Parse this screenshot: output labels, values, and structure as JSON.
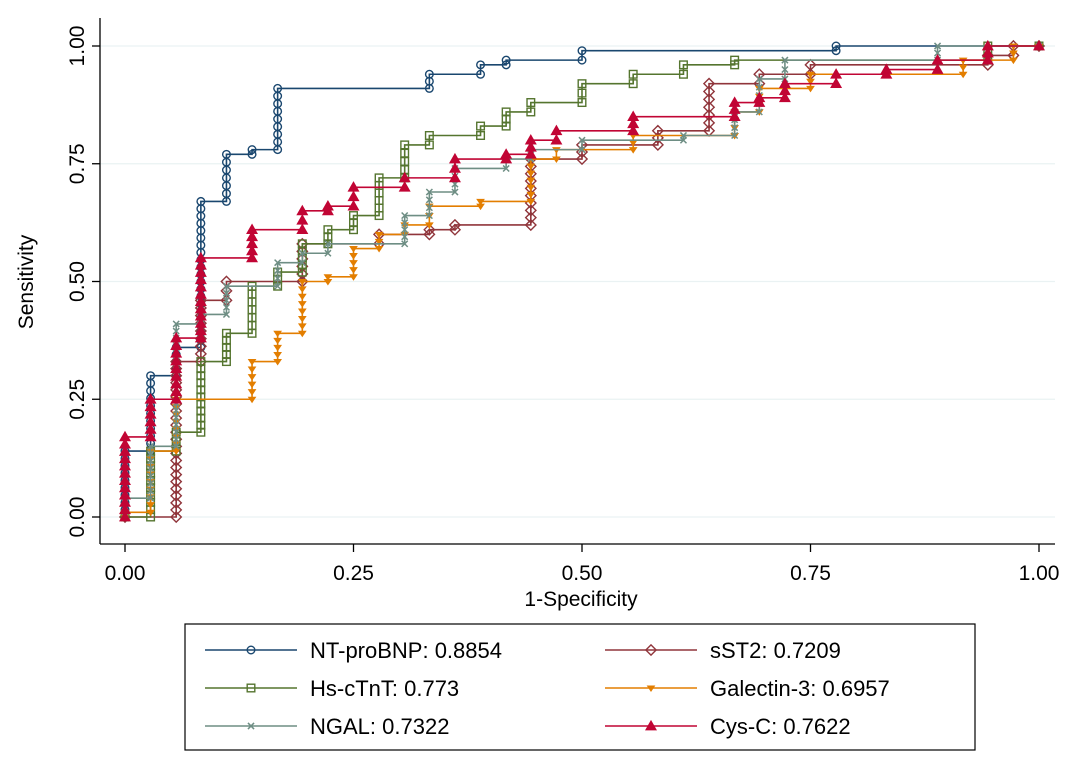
{
  "chart_data": {
    "type": "line",
    "subtype": "roc",
    "title": "",
    "xlabel": "1-Specificity",
    "ylabel": "Sensitivity",
    "xlim": [
      0,
      1
    ],
    "ylim": [
      0,
      1
    ],
    "xticks": [
      {
        "value": 0,
        "label": "0.00"
      },
      {
        "value": 0.25,
        "label": "0.25"
      },
      {
        "value": 0.5,
        "label": "0.50"
      },
      {
        "value": 0.75,
        "label": "0.75"
      },
      {
        "value": 1,
        "label": "1.00"
      }
    ],
    "yticks": [
      {
        "value": 0,
        "label": "0.00"
      },
      {
        "value": 0.25,
        "label": "0.25"
      },
      {
        "value": 0.5,
        "label": "0.50"
      },
      {
        "value": 0.75,
        "label": "0.75"
      },
      {
        "value": 1,
        "label": "1.00"
      }
    ],
    "grid": "horizontal",
    "legend_position": "bottom",
    "series": [
      {
        "name": "NT-proBNP",
        "auc": "0.8854",
        "label": "NT-proBNP: 0.8854",
        "color": "#1a476f",
        "marker": "circle",
        "points": [
          [
            0,
            0
          ],
          [
            0,
            0.14
          ],
          [
            0.028,
            0.14
          ],
          [
            0.028,
            0.3
          ],
          [
            0.056,
            0.3
          ],
          [
            0.056,
            0.36
          ],
          [
            0.083,
            0.36
          ],
          [
            0.083,
            0.67
          ],
          [
            0.111,
            0.67
          ],
          [
            0.111,
            0.77
          ],
          [
            0.139,
            0.77
          ],
          [
            0.139,
            0.78
          ],
          [
            0.167,
            0.78
          ],
          [
            0.167,
            0.91
          ],
          [
            0.333,
            0.91
          ],
          [
            0.333,
            0.94
          ],
          [
            0.389,
            0.94
          ],
          [
            0.389,
            0.96
          ],
          [
            0.417,
            0.96
          ],
          [
            0.417,
            0.97
          ],
          [
            0.5,
            0.97
          ],
          [
            0.5,
            0.99
          ],
          [
            0.778,
            0.99
          ],
          [
            0.778,
            1
          ],
          [
            1,
            1
          ]
        ]
      },
      {
        "name": "sST2",
        "auc": "0.7209",
        "label": "sST2: 0.7209",
        "color": "#90353b",
        "marker": "diamond",
        "points": [
          [
            0,
            0
          ],
          [
            0.056,
            0
          ],
          [
            0.056,
            0.33
          ],
          [
            0.083,
            0.33
          ],
          [
            0.083,
            0.46
          ],
          [
            0.111,
            0.46
          ],
          [
            0.111,
            0.5
          ],
          [
            0.194,
            0.5
          ],
          [
            0.194,
            0.58
          ],
          [
            0.278,
            0.58
          ],
          [
            0.278,
            0.6
          ],
          [
            0.333,
            0.6
          ],
          [
            0.333,
            0.61
          ],
          [
            0.361,
            0.61
          ],
          [
            0.361,
            0.62
          ],
          [
            0.444,
            0.62
          ],
          [
            0.444,
            0.76
          ],
          [
            0.5,
            0.76
          ],
          [
            0.5,
            0.79
          ],
          [
            0.583,
            0.79
          ],
          [
            0.583,
            0.82
          ],
          [
            0.639,
            0.82
          ],
          [
            0.639,
            0.92
          ],
          [
            0.694,
            0.92
          ],
          [
            0.694,
            0.94
          ],
          [
            0.75,
            0.94
          ],
          [
            0.75,
            0.96
          ],
          [
            0.944,
            0.96
          ],
          [
            0.944,
            0.98
          ],
          [
            0.972,
            0.98
          ],
          [
            0.972,
            1
          ],
          [
            1,
            1
          ]
        ]
      },
      {
        "name": "Hs-cTnT",
        "auc": "0.773",
        "label": "Hs-cTnT: 0.773",
        "color": "#55752f",
        "marker": "square",
        "points": [
          [
            0,
            0
          ],
          [
            0.028,
            0
          ],
          [
            0.028,
            0.14
          ],
          [
            0.056,
            0.14
          ],
          [
            0.056,
            0.18
          ],
          [
            0.083,
            0.18
          ],
          [
            0.083,
            0.33
          ],
          [
            0.111,
            0.33
          ],
          [
            0.111,
            0.39
          ],
          [
            0.139,
            0.39
          ],
          [
            0.139,
            0.49
          ],
          [
            0.167,
            0.49
          ],
          [
            0.167,
            0.52
          ],
          [
            0.194,
            0.52
          ],
          [
            0.194,
            0.58
          ],
          [
            0.222,
            0.58
          ],
          [
            0.222,
            0.61
          ],
          [
            0.25,
            0.61
          ],
          [
            0.25,
            0.64
          ],
          [
            0.278,
            0.64
          ],
          [
            0.278,
            0.72
          ],
          [
            0.306,
            0.72
          ],
          [
            0.306,
            0.79
          ],
          [
            0.333,
            0.79
          ],
          [
            0.333,
            0.81
          ],
          [
            0.389,
            0.81
          ],
          [
            0.389,
            0.83
          ],
          [
            0.417,
            0.83
          ],
          [
            0.417,
            0.86
          ],
          [
            0.444,
            0.86
          ],
          [
            0.444,
            0.88
          ],
          [
            0.5,
            0.88
          ],
          [
            0.5,
            0.92
          ],
          [
            0.556,
            0.92
          ],
          [
            0.556,
            0.94
          ],
          [
            0.611,
            0.94
          ],
          [
            0.611,
            0.96
          ],
          [
            0.667,
            0.96
          ],
          [
            0.667,
            0.97
          ],
          [
            0.944,
            0.97
          ],
          [
            0.944,
            1
          ],
          [
            1,
            1
          ]
        ]
      },
      {
        "name": "Galectin-3",
        "auc": "0.6957",
        "label": "Galectin-3: 0.6957",
        "color": "#e37e00",
        "marker": "triangle-down",
        "points": [
          [
            0,
            0
          ],
          [
            0,
            0.01
          ],
          [
            0.028,
            0.01
          ],
          [
            0.028,
            0.14
          ],
          [
            0.056,
            0.14
          ],
          [
            0.056,
            0.25
          ],
          [
            0.139,
            0.25
          ],
          [
            0.139,
            0.33
          ],
          [
            0.167,
            0.33
          ],
          [
            0.167,
            0.39
          ],
          [
            0.194,
            0.39
          ],
          [
            0.194,
            0.5
          ],
          [
            0.222,
            0.5
          ],
          [
            0.222,
            0.51
          ],
          [
            0.25,
            0.51
          ],
          [
            0.25,
            0.57
          ],
          [
            0.278,
            0.57
          ],
          [
            0.278,
            0.6
          ],
          [
            0.306,
            0.6
          ],
          [
            0.306,
            0.62
          ],
          [
            0.333,
            0.62
          ],
          [
            0.333,
            0.66
          ],
          [
            0.389,
            0.66
          ],
          [
            0.389,
            0.67
          ],
          [
            0.444,
            0.67
          ],
          [
            0.444,
            0.76
          ],
          [
            0.472,
            0.76
          ],
          [
            0.472,
            0.78
          ],
          [
            0.556,
            0.78
          ],
          [
            0.556,
            0.81
          ],
          [
            0.667,
            0.81
          ],
          [
            0.667,
            0.86
          ],
          [
            0.694,
            0.86
          ],
          [
            0.694,
            0.91
          ],
          [
            0.75,
            0.91
          ],
          [
            0.75,
            0.94
          ],
          [
            0.917,
            0.94
          ],
          [
            0.917,
            0.97
          ],
          [
            0.972,
            0.97
          ],
          [
            0.972,
            1
          ],
          [
            1,
            1
          ]
        ]
      },
      {
        "name": "NGAL",
        "auc": "0.7322",
        "label": "NGAL: 0.7322",
        "color": "#6e8e84",
        "marker": "x",
        "points": [
          [
            0,
            0
          ],
          [
            0,
            0.04
          ],
          [
            0.028,
            0.04
          ],
          [
            0.028,
            0.15
          ],
          [
            0.056,
            0.15
          ],
          [
            0.056,
            0.41
          ],
          [
            0.083,
            0.41
          ],
          [
            0.083,
            0.43
          ],
          [
            0.111,
            0.43
          ],
          [
            0.111,
            0.49
          ],
          [
            0.167,
            0.49
          ],
          [
            0.167,
            0.54
          ],
          [
            0.194,
            0.54
          ],
          [
            0.194,
            0.56
          ],
          [
            0.222,
            0.56
          ],
          [
            0.222,
            0.58
          ],
          [
            0.306,
            0.58
          ],
          [
            0.306,
            0.64
          ],
          [
            0.333,
            0.64
          ],
          [
            0.333,
            0.69
          ],
          [
            0.361,
            0.69
          ],
          [
            0.361,
            0.74
          ],
          [
            0.417,
            0.74
          ],
          [
            0.417,
            0.76
          ],
          [
            0.444,
            0.76
          ],
          [
            0.444,
            0.78
          ],
          [
            0.5,
            0.78
          ],
          [
            0.5,
            0.8
          ],
          [
            0.611,
            0.8
          ],
          [
            0.611,
            0.81
          ],
          [
            0.667,
            0.81
          ],
          [
            0.667,
            0.86
          ],
          [
            0.694,
            0.86
          ],
          [
            0.694,
            0.93
          ],
          [
            0.722,
            0.93
          ],
          [
            0.722,
            0.97
          ],
          [
            0.889,
            0.97
          ],
          [
            0.889,
            1
          ],
          [
            1,
            1
          ]
        ]
      },
      {
        "name": "Cys-C",
        "auc": "0.7622",
        "label": "Cys-C: 0.7622",
        "color": "#c10534",
        "marker": "triangle",
        "points": [
          [
            0,
            0
          ],
          [
            0,
            0.17
          ],
          [
            0.028,
            0.17
          ],
          [
            0.028,
            0.25
          ],
          [
            0.056,
            0.25
          ],
          [
            0.056,
            0.38
          ],
          [
            0.083,
            0.38
          ],
          [
            0.083,
            0.55
          ],
          [
            0.139,
            0.55
          ],
          [
            0.139,
            0.61
          ],
          [
            0.194,
            0.61
          ],
          [
            0.194,
            0.65
          ],
          [
            0.222,
            0.65
          ],
          [
            0.222,
            0.66
          ],
          [
            0.25,
            0.66
          ],
          [
            0.25,
            0.7
          ],
          [
            0.306,
            0.7
          ],
          [
            0.306,
            0.72
          ],
          [
            0.361,
            0.72
          ],
          [
            0.361,
            0.76
          ],
          [
            0.417,
            0.76
          ],
          [
            0.417,
            0.77
          ],
          [
            0.444,
            0.77
          ],
          [
            0.444,
            0.8
          ],
          [
            0.472,
            0.8
          ],
          [
            0.472,
            0.82
          ],
          [
            0.556,
            0.82
          ],
          [
            0.556,
            0.85
          ],
          [
            0.667,
            0.85
          ],
          [
            0.667,
            0.88
          ],
          [
            0.694,
            0.88
          ],
          [
            0.694,
            0.89
          ],
          [
            0.722,
            0.89
          ],
          [
            0.722,
            0.92
          ],
          [
            0.778,
            0.92
          ],
          [
            0.778,
            0.94
          ],
          [
            0.833,
            0.94
          ],
          [
            0.833,
            0.95
          ],
          [
            0.889,
            0.95
          ],
          [
            0.889,
            0.97
          ],
          [
            0.944,
            0.97
          ],
          [
            0.944,
            1
          ],
          [
            1,
            1
          ]
        ]
      }
    ]
  }
}
